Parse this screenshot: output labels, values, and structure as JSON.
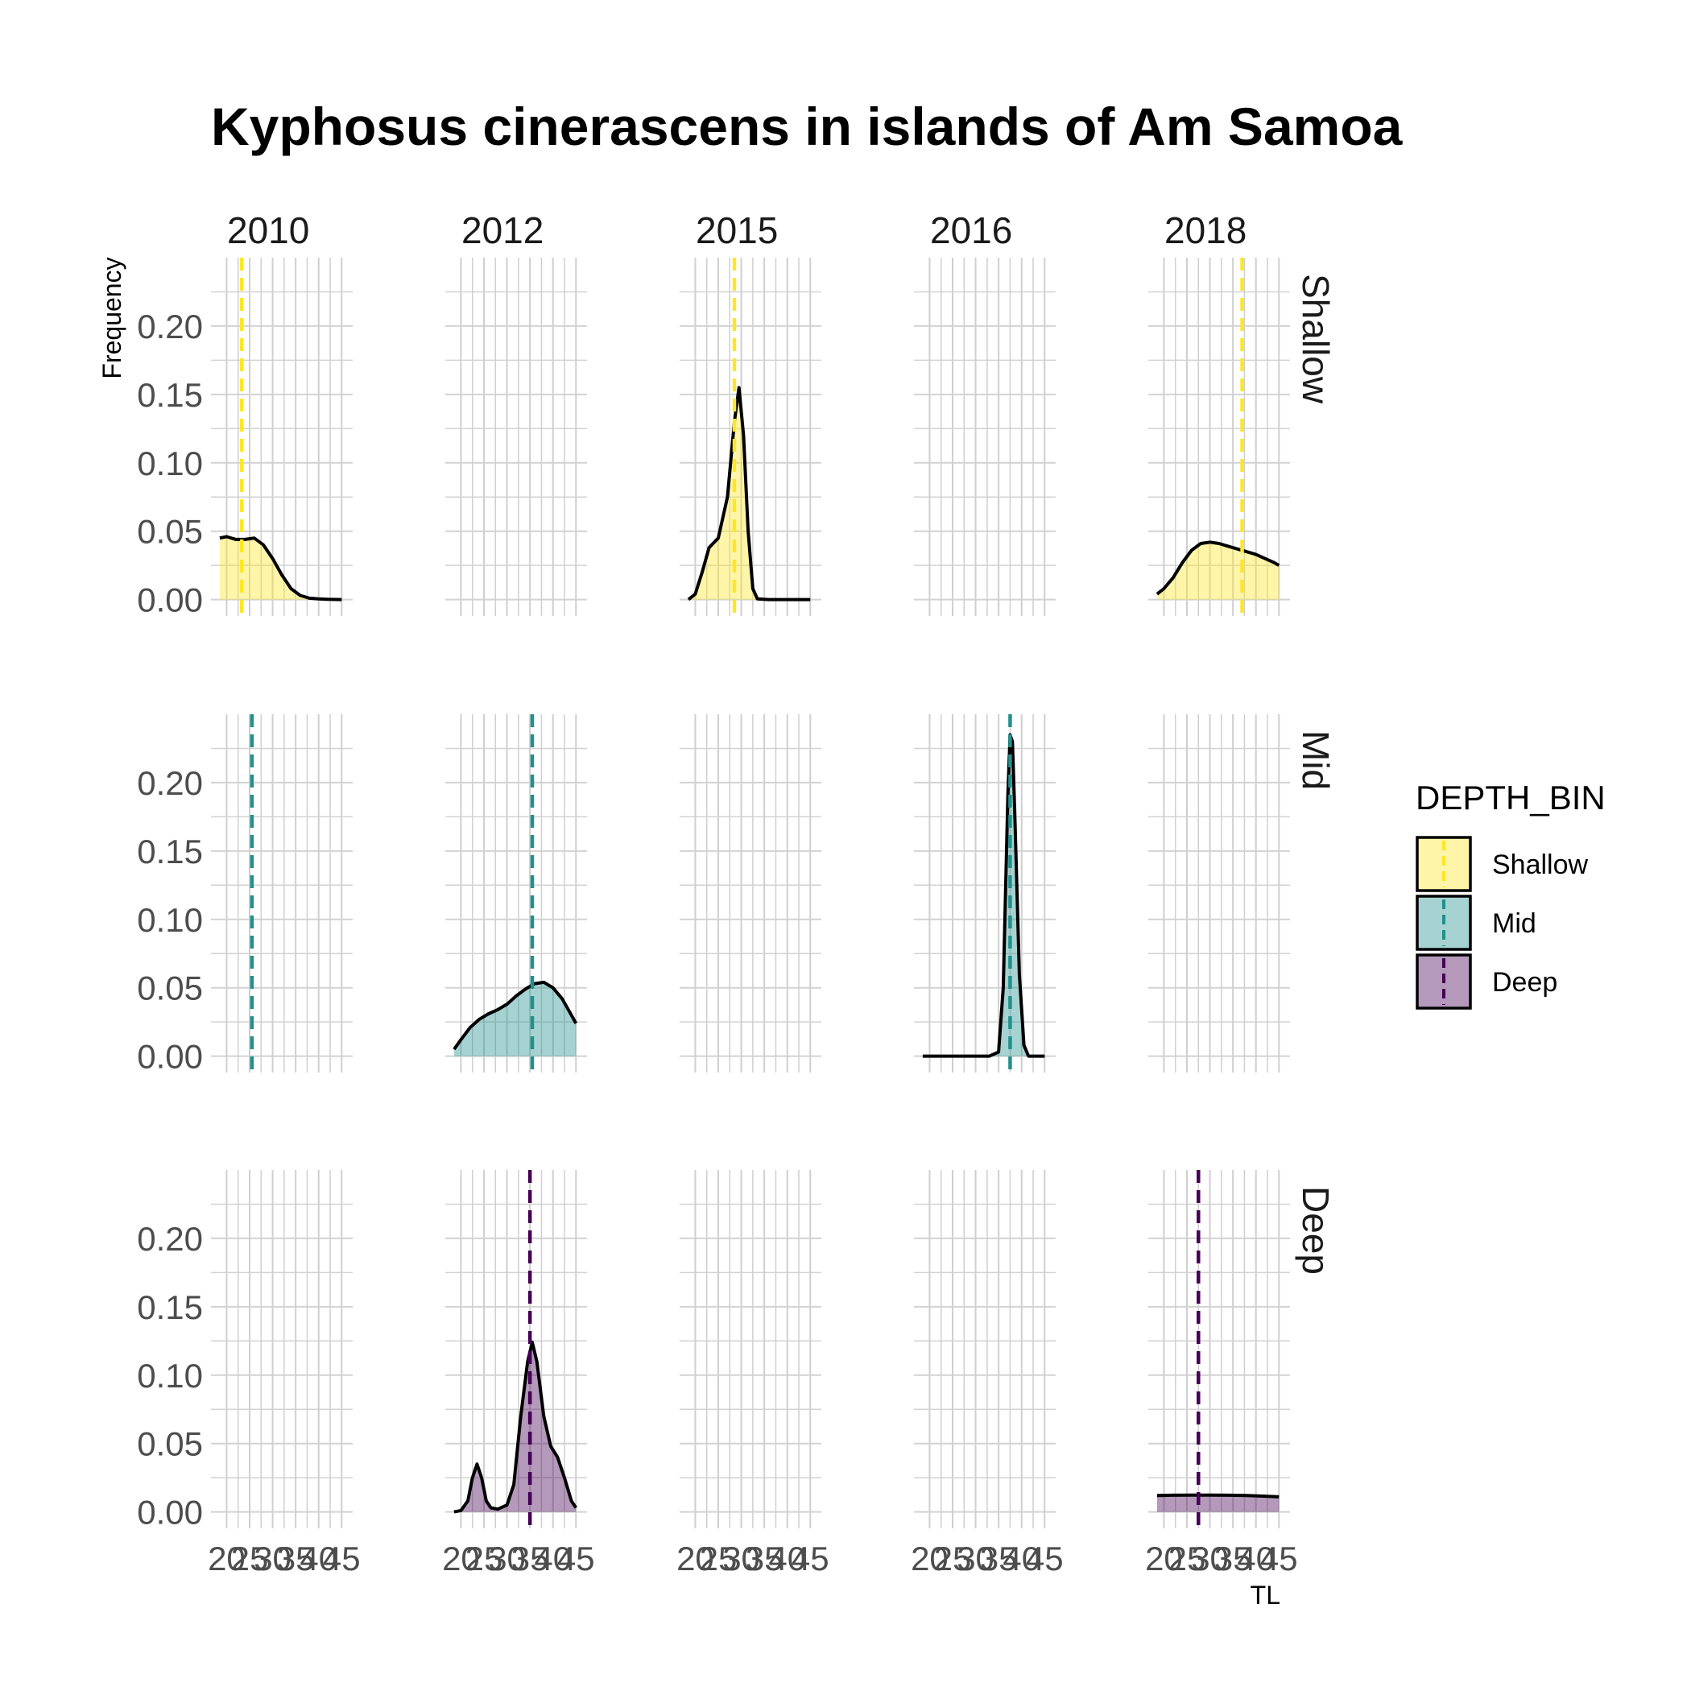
{
  "chart_data": {
    "type": "area",
    "title": "Kyphosus cinerascens in islands of Am Samoa",
    "xlabel": "TL",
    "ylabel": "Frequency",
    "xlim": [
      18,
      46
    ],
    "ylim": [
      -0.012,
      0.25
    ],
    "x_ticks": [
      20,
      25,
      30,
      35,
      40,
      45
    ],
    "x_tick_labels": [
      "20",
      "25",
      "30",
      "35",
      "40",
      "45"
    ],
    "y_ticks": [
      0,
      0.05,
      0.1,
      0.15,
      0.2
    ],
    "y_tick_labels": [
      "0.00",
      "0.05",
      "0.10",
      "0.15",
      "0.20"
    ],
    "columns": [
      "2010",
      "2012",
      "2015",
      "2016",
      "2018"
    ],
    "rows": [
      "Shallow",
      "Mid",
      "Deep"
    ],
    "grid": true,
    "legend": {
      "title": "DEPTH_BIN",
      "position": "right",
      "entries": [
        {
          "label": "Shallow",
          "color": "#FDE725"
        },
        {
          "label": "Mid",
          "color": "#21908C"
        },
        {
          "label": "Deep",
          "color": "#440154"
        }
      ]
    },
    "panels": [
      {
        "row": "Shallow",
        "col": "2010",
        "mean": 23.3,
        "density": [
          [
            18.5,
            0.045
          ],
          [
            20,
            0.046
          ],
          [
            22,
            0.044
          ],
          [
            24,
            0.044
          ],
          [
            26,
            0.045
          ],
          [
            28,
            0.04
          ],
          [
            30,
            0.03
          ],
          [
            32,
            0.018
          ],
          [
            34,
            0.008
          ],
          [
            36,
            0.003
          ],
          [
            38,
            0.001
          ],
          [
            40,
            0.0005
          ],
          [
            42,
            0.0002
          ],
          [
            45,
            0.0
          ]
        ]
      },
      {
        "row": "Shallow",
        "col": "2015",
        "mean": 28.5,
        "density": [
          [
            18.5,
            0.0
          ],
          [
            20,
            0.004
          ],
          [
            21.5,
            0.02
          ],
          [
            23,
            0.038
          ],
          [
            25,
            0.045
          ],
          [
            27,
            0.075
          ],
          [
            28.5,
            0.13
          ],
          [
            29.5,
            0.155
          ],
          [
            30.5,
            0.12
          ],
          [
            31.5,
            0.05
          ],
          [
            32.5,
            0.008
          ],
          [
            33.5,
            0.0005
          ],
          [
            36,
            0.0
          ],
          [
            45,
            0.0
          ]
        ]
      },
      {
        "row": "Shallow",
        "col": "2018",
        "mean": 37,
        "density": [
          [
            18.5,
            0.004
          ],
          [
            20,
            0.008
          ],
          [
            22,
            0.016
          ],
          [
            24,
            0.027
          ],
          [
            26,
            0.036
          ],
          [
            28,
            0.041
          ],
          [
            30,
            0.042
          ],
          [
            32,
            0.041
          ],
          [
            34,
            0.039
          ],
          [
            36,
            0.037
          ],
          [
            38,
            0.035
          ],
          [
            40,
            0.033
          ],
          [
            42,
            0.03
          ],
          [
            44,
            0.027
          ],
          [
            45,
            0.025
          ]
        ]
      },
      {
        "row": "Mid",
        "col": "2010",
        "mean": 25.5,
        "density": []
      },
      {
        "row": "Mid",
        "col": "2012",
        "mean": 35.5,
        "density": [
          [
            18.5,
            0.005
          ],
          [
            20,
            0.012
          ],
          [
            22,
            0.021
          ],
          [
            24,
            0.027
          ],
          [
            26,
            0.031
          ],
          [
            28,
            0.034
          ],
          [
            30,
            0.038
          ],
          [
            32,
            0.044
          ],
          [
            34,
            0.049
          ],
          [
            36,
            0.053
          ],
          [
            38,
            0.054
          ],
          [
            40,
            0.05
          ],
          [
            42,
            0.042
          ],
          [
            44,
            0.03
          ],
          [
            45,
            0.024
          ]
        ]
      },
      {
        "row": "Mid",
        "col": "2016",
        "mean": 37.5,
        "density": [
          [
            18.5,
            0.0
          ],
          [
            30,
            0.0
          ],
          [
            33,
            0.0
          ],
          [
            35,
            0.003
          ],
          [
            36,
            0.05
          ],
          [
            37,
            0.19
          ],
          [
            37.5,
            0.235
          ],
          [
            38,
            0.23
          ],
          [
            38.5,
            0.18
          ],
          [
            39.5,
            0.06
          ],
          [
            40.5,
            0.008
          ],
          [
            41.5,
            0.0
          ],
          [
            45,
            0.0
          ]
        ]
      },
      {
        "row": "Deep",
        "col": "2012",
        "mean": 35,
        "density": [
          [
            18.5,
            0.0
          ],
          [
            20,
            0.001
          ],
          [
            21.5,
            0.008
          ],
          [
            22.5,
            0.025
          ],
          [
            23.5,
            0.035
          ],
          [
            24.5,
            0.025
          ],
          [
            25.5,
            0.008
          ],
          [
            26.5,
            0.003
          ],
          [
            28,
            0.002
          ],
          [
            30,
            0.005
          ],
          [
            31.5,
            0.02
          ],
          [
            33,
            0.07
          ],
          [
            34.5,
            0.11
          ],
          [
            35.5,
            0.124
          ],
          [
            36.5,
            0.11
          ],
          [
            38,
            0.07
          ],
          [
            39.5,
            0.048
          ],
          [
            41,
            0.04
          ],
          [
            42.5,
            0.025
          ],
          [
            44,
            0.008
          ],
          [
            45,
            0.003
          ]
        ]
      },
      {
        "row": "Deep",
        "col": "2018",
        "mean": 27.5,
        "density": [
          [
            18.5,
            0.012
          ],
          [
            22,
            0.0122
          ],
          [
            26,
            0.0123
          ],
          [
            30,
            0.0123
          ],
          [
            34,
            0.0122
          ],
          [
            38,
            0.012
          ],
          [
            42,
            0.0115
          ],
          [
            45,
            0.011
          ]
        ]
      }
    ]
  }
}
